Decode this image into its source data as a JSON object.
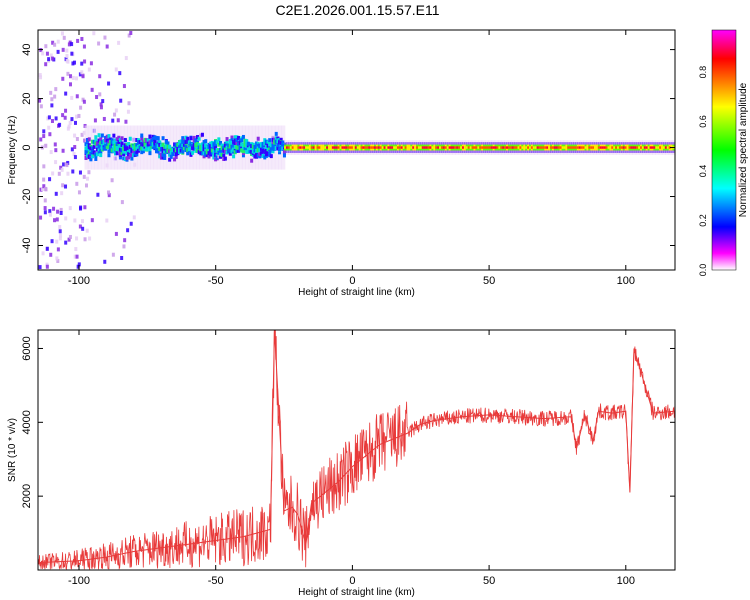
{
  "title": "C2E1.2026.001.15.57.E11",
  "chart_data": [
    {
      "type": "heatmap",
      "title": "C2E1.2026.001.15.57.E11",
      "xlabel": "Height of straight line (km)",
      "ylabel": "Frequency (Hz)",
      "xlim": [
        -115,
        118
      ],
      "ylim": [
        -50,
        48
      ],
      "xticks": [
        -100,
        -50,
        0,
        50,
        100
      ],
      "yticks": [
        40,
        20,
        0,
        -20,
        -40
      ],
      "colorbar": {
        "label": "Normalized spectral amplitude",
        "range": [
          0,
          0.97
        ],
        "ticks": [
          0.0,
          0.2,
          0.4,
          0.6,
          0.8
        ],
        "colormap": [
          "#ff00ff",
          "#ff0000",
          "#ffff00",
          "#00ff00",
          "#00ffff",
          "#0000ff",
          "#ff00ff",
          "#ffffff"
        ]
      },
      "regions": [
        {
          "x": [
            -115,
            -98
          ],
          "freq_spread": 48,
          "amplitude": 0.1
        },
        {
          "x": [
            -98,
            -25
          ],
          "freq_spread": 6,
          "amplitude": 0.45
        },
        {
          "x": [
            -25,
            118
          ],
          "freq_spread": 1.5,
          "amplitude": 0.85
        }
      ]
    },
    {
      "type": "line",
      "xlabel": "Height of straight line (km)",
      "ylabel": "SNR (10 * v/v)",
      "xlim": [
        -115,
        118
      ],
      "ylim": [
        0,
        6500
      ],
      "xticks": [
        -100,
        -50,
        0,
        50,
        100
      ],
      "yticks": [
        2000,
        4000,
        6000
      ],
      "color": "#e83a3a",
      "x": [
        -115,
        -100,
        -90,
        -80,
        -70,
        -60,
        -50,
        -40,
        -35,
        -30,
        -28.5,
        -25,
        -22,
        -20,
        -17,
        -15,
        -10,
        -5,
        0,
        10,
        20,
        25,
        30,
        40,
        50,
        60,
        70,
        80,
        82,
        85,
        88,
        90,
        95,
        100,
        101.5,
        103,
        110,
        118
      ],
      "y": [
        200,
        250,
        350,
        500,
        600,
        700,
        800,
        900,
        1000,
        1100,
        6500,
        1600,
        1700,
        1500,
        700,
        1800,
        2100,
        2400,
        2800,
        3400,
        3700,
        3950,
        4050,
        4150,
        4200,
        4150,
        4100,
        4150,
        3300,
        4200,
        3500,
        4300,
        4250,
        4300,
        2100,
        6000,
        4250,
        4300
      ]
    }
  ]
}
